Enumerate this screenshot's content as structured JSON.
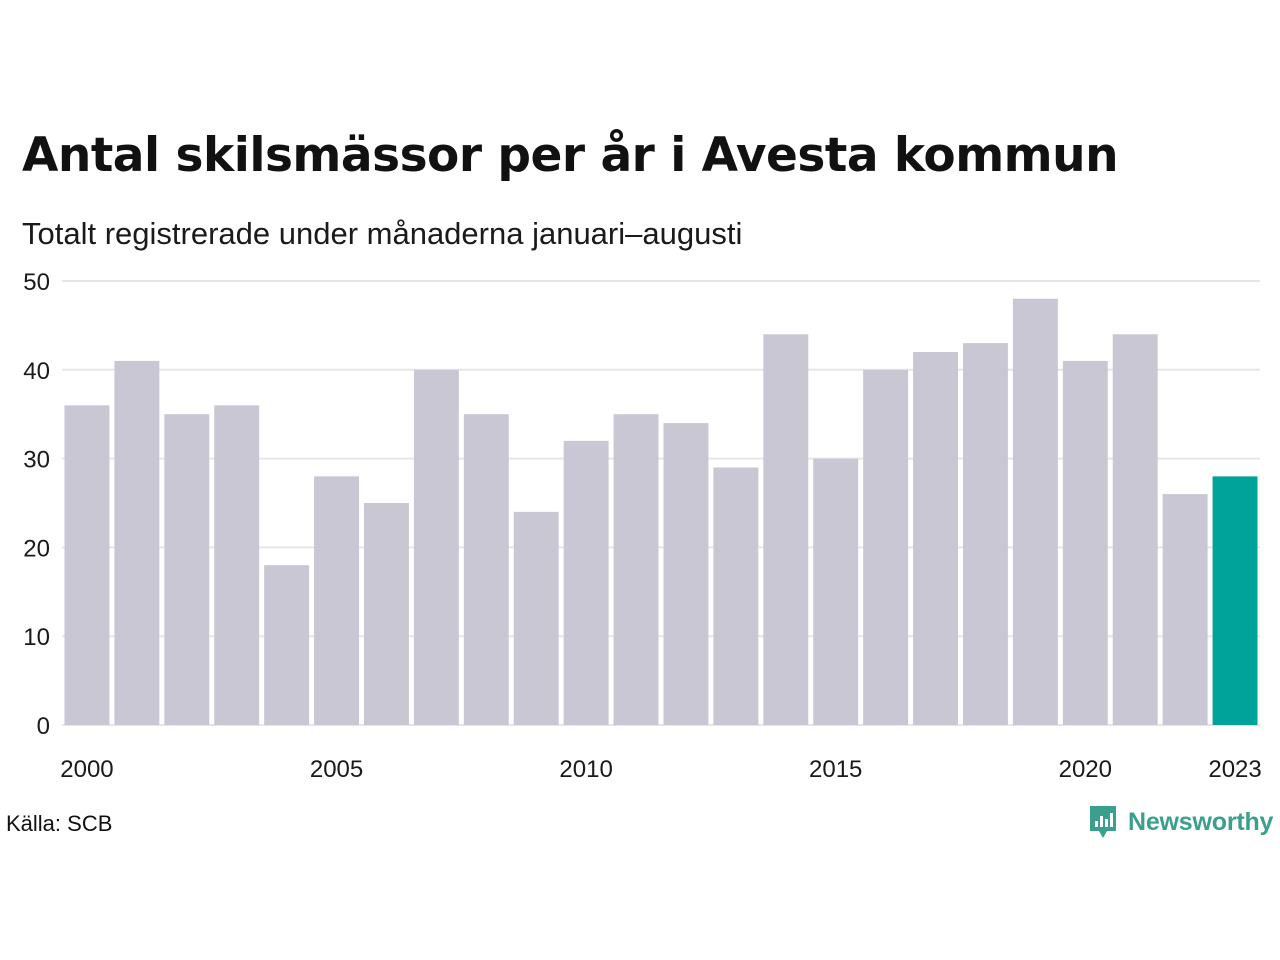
{
  "header": {
    "title": "Antal skilsmässor per år i Avesta kommun",
    "subtitle": "Totalt registrerade under månaderna januari–augusti"
  },
  "footer": {
    "source": "Källa: SCB",
    "brand": "Newsworthy",
    "brand_icon": "newsworthy-logo-icon"
  },
  "colors": {
    "bar": "#c8c7d3",
    "highlight": "#00a39a",
    "grid": "#e6e6ea",
    "brand": "#3a9f8c"
  },
  "chart_data": {
    "type": "bar",
    "title": "Antal skilsmässor per år i Avesta kommun",
    "subtitle": "Totalt registrerade under månaderna januari–augusti",
    "categories": [
      "2000",
      "2001",
      "2002",
      "2003",
      "2004",
      "2005",
      "2006",
      "2007",
      "2008",
      "2009",
      "2010",
      "2011",
      "2012",
      "2013",
      "2014",
      "2015",
      "2016",
      "2017",
      "2018",
      "2019",
      "2020",
      "2021",
      "2022",
      "2023"
    ],
    "values": [
      36,
      41,
      35,
      36,
      18,
      28,
      25,
      40,
      35,
      24,
      32,
      35,
      34,
      29,
      44,
      30,
      40,
      42,
      43,
      48,
      41,
      44,
      26,
      28
    ],
    "highlight_category": "2023",
    "xticks": [
      "2000",
      "2005",
      "2010",
      "2015",
      "2020",
      "2023"
    ],
    "yticks": [
      0,
      10,
      20,
      30,
      40,
      50
    ],
    "ylim": [
      0,
      50
    ],
    "grid": true,
    "legend": "none"
  }
}
